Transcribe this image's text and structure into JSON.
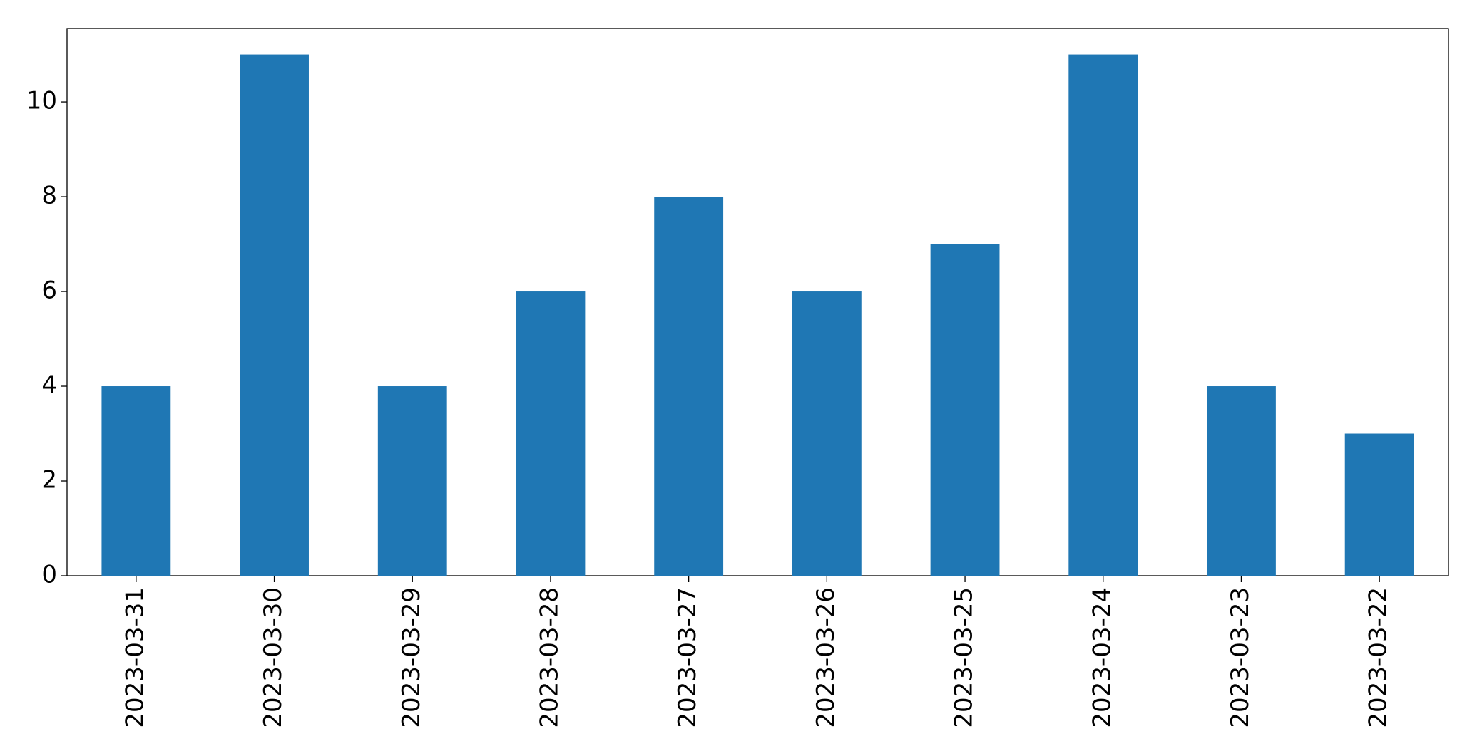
{
  "chart_data": {
    "type": "bar",
    "categories": [
      "2023-03-31",
      "2023-03-30",
      "2023-03-29",
      "2023-03-28",
      "2023-03-27",
      "2023-03-26",
      "2023-03-25",
      "2023-03-24",
      "2023-03-23",
      "2023-03-22"
    ],
    "values": [
      4,
      11,
      4,
      6,
      8,
      6,
      7,
      11,
      4,
      3
    ],
    "color": "#1f77b4",
    "ylim": [
      0,
      11.55
    ],
    "yticks": [
      0,
      2,
      4,
      6,
      8,
      10
    ],
    "grid": false
  }
}
